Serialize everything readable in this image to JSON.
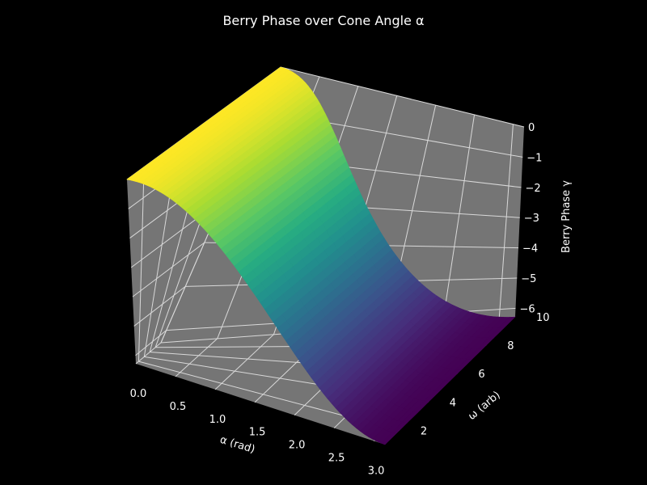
{
  "chart_data": {
    "type": "surface",
    "title": "Berry Phase over Cone Angle α",
    "xlabel": "α (rad)",
    "ylabel": "ω (arb)",
    "zlabel": "Berry Phase γ",
    "x_ticks": [
      "0.0",
      "0.5",
      "1.0",
      "1.5",
      "2.0",
      "2.5",
      "3.0"
    ],
    "y_ticks": [
      "2",
      "4",
      "6",
      "8",
      "10"
    ],
    "z_ticks": [
      "0",
      "−1",
      "−2",
      "−3",
      "−4",
      "−5",
      "−6"
    ],
    "xlim": [
      0,
      3.14159
    ],
    "ylim": [
      1,
      10
    ],
    "zlim": [
      -6.2832,
      0
    ],
    "grid": true,
    "colormap": "viridis",
    "function": "gamma = -pi * (1 - cos(alpha)), independent of omega",
    "z_samples": {
      "alpha": [
        0.0,
        0.5,
        1.0,
        1.5,
        2.0,
        2.5,
        3.0,
        3.1416
      ],
      "gamma": [
        0.0,
        -0.386,
        -1.444,
        -2.92,
        -4.449,
        -5.658,
        -6.252,
        -6.283
      ]
    },
    "colors": {
      "background": "#000000",
      "pane": "#757575",
      "grid": "#d9d9d9",
      "text": "#ffffff"
    }
  }
}
